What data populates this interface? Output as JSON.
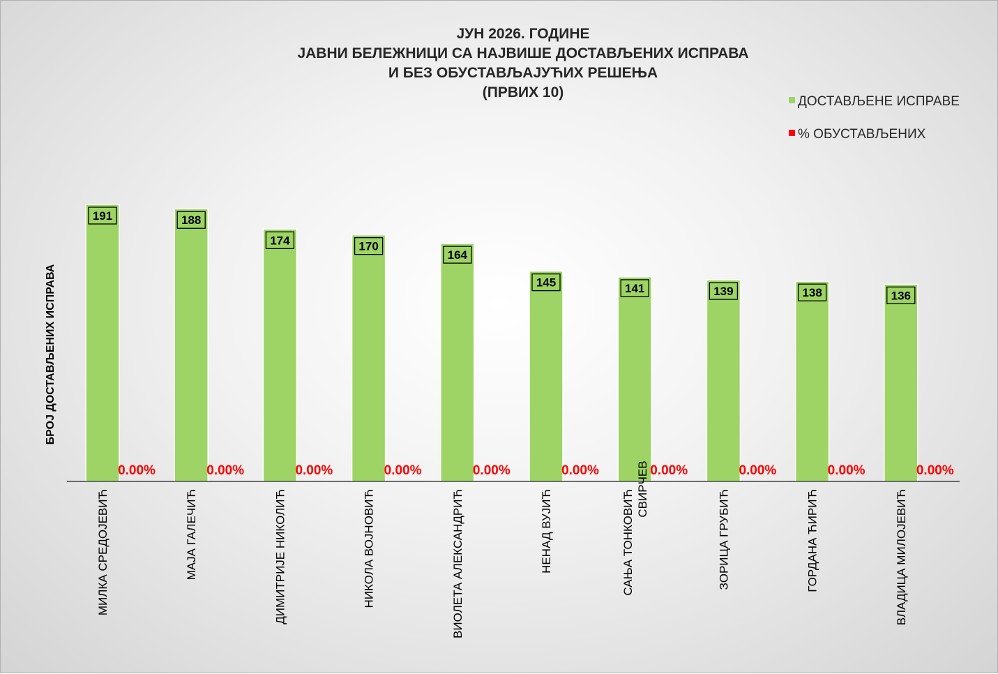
{
  "chart_data": {
    "type": "bar",
    "title": [
      "ЈУН 2026. ГОДИНЕ",
      "ЈАВНИ БЕЛЕЖНИЦИ СА НАЈВИШЕ ДОСТАВЉЕНИХ ИСПРАВА",
      "И БЕЗ ОБУСТАВЉАЈУЋИХ РЕШЕЊА",
      "(ПРВИХ 10)"
    ],
    "ylabel": "БРОЈ ДОСТАВЉЕНИХ ИСПРАВА",
    "categories": [
      [
        "МИЛКА СРЕДОЈЕВИЋ"
      ],
      [
        "МАЈА ГАЛЕЧИЋ"
      ],
      [
        "ДИМИТРИЈЕ НИКОЛИЋ"
      ],
      [
        "НИКОЛА ВОЈНОВИЋ"
      ],
      [
        "ВИОЛЕТА АЛЕКСАНДРИЋ"
      ],
      [
        "НЕНАД ВУЈИЋ"
      ],
      [
        "САЊА ТОНКОВИЋ",
        "СВИРЧЕВ"
      ],
      [
        "ЗОРИЦА ГРУБИЋ"
      ],
      [
        "ГОРДАНА ЋИРИЋ"
      ],
      [
        "ВЛАДИЦА МИЛОЈЕВИЋ"
      ]
    ],
    "series": [
      {
        "name": "ДОСТАВЉЕНЕ ИСПРАВЕ",
        "color": "#9dd465",
        "values": [
          191,
          188,
          174,
          170,
          164,
          145,
          141,
          139,
          138,
          136
        ],
        "labels": [
          "191",
          "188",
          "174",
          "170",
          "164",
          "145",
          "141",
          "139",
          "138",
          "136"
        ]
      },
      {
        "name": "% ОБУСТАВЉЕНИХ",
        "color": "#ff0000",
        "values": [
          0,
          0,
          0,
          0,
          0,
          0,
          0,
          0,
          0,
          0
        ],
        "labels": [
          "0.00%",
          "0.00%",
          "0.00%",
          "0.00%",
          "0.00%",
          "0.00%",
          "0.00%",
          "0.00%",
          "0.00%",
          "0.00%"
        ]
      }
    ],
    "ylim": [
      0,
      200
    ],
    "grid": false,
    "legend_position": "top-right"
  }
}
